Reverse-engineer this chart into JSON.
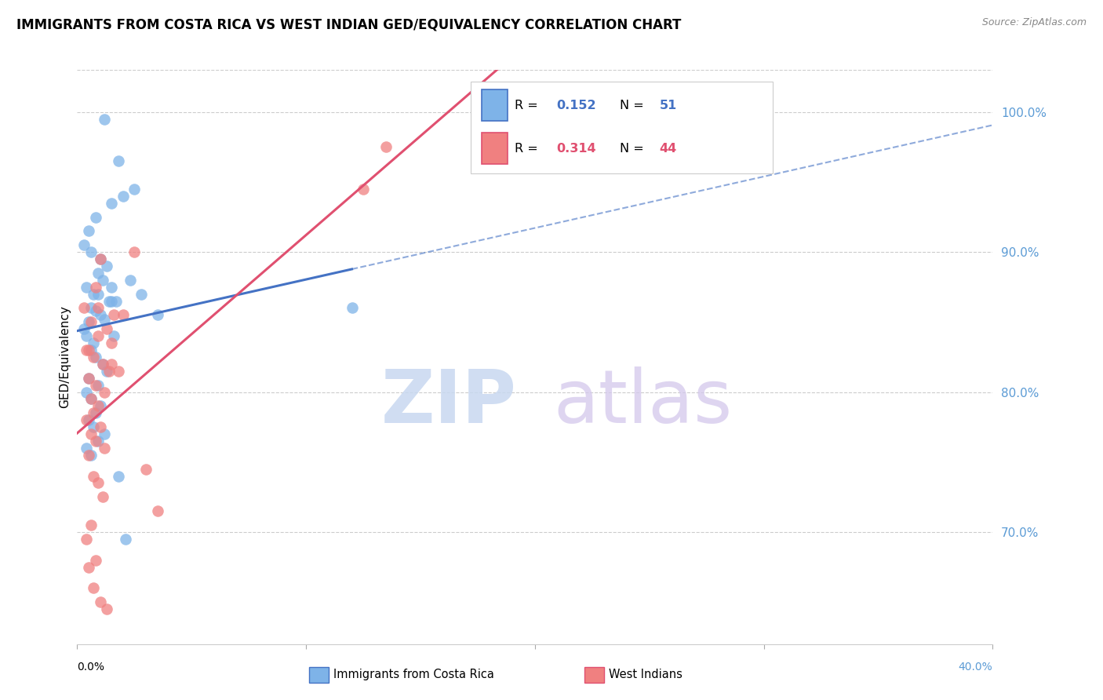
{
  "title": "IMMIGRANTS FROM COSTA RICA VS WEST INDIAN GED/EQUIVALENCY CORRELATION CHART",
  "source": "Source: ZipAtlas.com",
  "ylabel_left": "GED/Equivalency",
  "xlim": [
    0.0,
    40.0
  ],
  "ylim": [
    62.0,
    103.0
  ],
  "yticks": [
    70.0,
    80.0,
    90.0,
    100.0
  ],
  "ytick_labels": [
    "70.0%",
    "80.0%",
    "90.0%",
    "100.0%"
  ],
  "xtick_positions": [
    0.0,
    10.0,
    20.0,
    30.0,
    40.0
  ],
  "series1_label": "Immigrants from Costa Rica",
  "series1_color": "#7EB3E8",
  "series1_R": "0.152",
  "series1_N": "51",
  "series2_label": "West Indians",
  "series2_color": "#F08080",
  "series2_R": "0.314",
  "series2_N": "44",
  "trend1_color": "#4472C4",
  "trend2_color": "#E05070",
  "right_axis_color": "#5B9BD5",
  "grid_color": "#CCCCCC",
  "background_color": "#FFFFFF",
  "scatter1_x": [
    1.2,
    1.8,
    2.5,
    1.5,
    0.8,
    0.5,
    0.3,
    0.6,
    1.0,
    1.3,
    0.9,
    1.1,
    0.4,
    0.7,
    1.4,
    0.6,
    0.8,
    1.0,
    1.2,
    0.5,
    2.0,
    1.7,
    2.3,
    1.5,
    0.9,
    0.3,
    0.4,
    0.7,
    0.6,
    0.8,
    1.1,
    1.3,
    0.5,
    0.9,
    2.8,
    1.6,
    0.4,
    0.6,
    1.0,
    1.5,
    12.0,
    0.8,
    0.5,
    0.7,
    1.2,
    0.9,
    0.4,
    2.1,
    0.6,
    1.8,
    3.5
  ],
  "scatter1_y": [
    99.5,
    96.5,
    94.5,
    93.5,
    92.5,
    91.5,
    90.5,
    90.0,
    89.5,
    89.0,
    88.5,
    88.0,
    87.5,
    87.0,
    86.5,
    86.0,
    85.8,
    85.5,
    85.2,
    85.0,
    94.0,
    86.5,
    88.0,
    87.5,
    87.0,
    84.5,
    84.0,
    83.5,
    83.0,
    82.5,
    82.0,
    81.5,
    81.0,
    80.5,
    87.0,
    84.0,
    80.0,
    79.5,
    79.0,
    86.5,
    86.0,
    78.5,
    78.0,
    77.5,
    77.0,
    76.5,
    76.0,
    69.5,
    75.5,
    74.0,
    85.5
  ],
  "scatter2_x": [
    0.3,
    0.5,
    0.8,
    1.0,
    1.3,
    0.6,
    0.9,
    1.5,
    0.4,
    0.7,
    1.1,
    1.8,
    0.5,
    0.8,
    1.2,
    0.6,
    2.5,
    0.9,
    1.4,
    0.7,
    0.4,
    1.0,
    0.6,
    1.5,
    0.8,
    1.2,
    0.5,
    3.0,
    0.7,
    2.0,
    0.9,
    1.1,
    3.5,
    0.6,
    12.5,
    13.5,
    0.4,
    0.8,
    1.3,
    0.5,
    0.7,
    1.0,
    1.6,
    0.9
  ],
  "scatter2_y": [
    86.0,
    83.0,
    87.5,
    89.5,
    84.5,
    85.0,
    84.0,
    83.5,
    83.0,
    82.5,
    82.0,
    81.5,
    81.0,
    80.5,
    80.0,
    79.5,
    90.0,
    79.0,
    81.5,
    78.5,
    78.0,
    77.5,
    77.0,
    82.0,
    76.5,
    76.0,
    75.5,
    74.5,
    74.0,
    85.5,
    73.5,
    72.5,
    71.5,
    70.5,
    94.5,
    97.5,
    69.5,
    68.0,
    64.5,
    67.5,
    66.0,
    65.0,
    85.5,
    86.0
  ]
}
